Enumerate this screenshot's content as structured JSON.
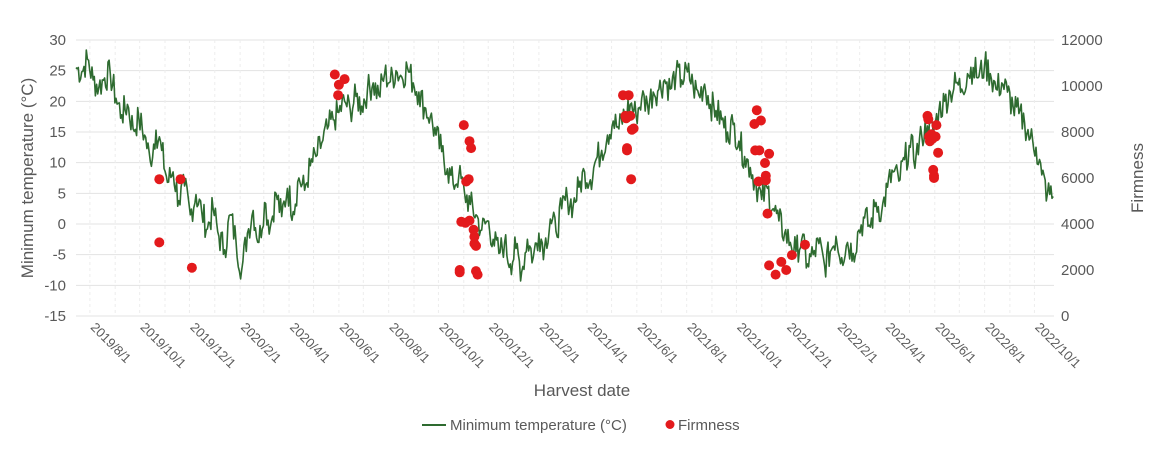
{
  "chart_data": {
    "type": "line+scatter",
    "xlabel": "Harvest date",
    "ylabel_left": "Minimum temperature (°C)",
    "ylabel_right": "Firmness",
    "x_range": [
      "2019-07-15",
      "2022-10-25"
    ],
    "ylim_left": [
      -15,
      30
    ],
    "ylim_right": [
      0,
      12000
    ],
    "yticks_left": [
      "-15",
      "-10",
      "-5",
      "0",
      "5",
      "10",
      "15",
      "20",
      "25",
      "30"
    ],
    "yticks_right": [
      "0",
      "2000",
      "4000",
      "6000",
      "8000",
      "10000",
      "12000"
    ],
    "x_tick_labels": [
      "2019/8/1",
      "2019/10/1",
      "2019/12/1",
      "2020/2/1",
      "2020/4/1",
      "2020/6/1",
      "2020/8/1",
      "2020/10/1",
      "2020/12/1",
      "2021/2/1",
      "2021/4/1",
      "2021/6/1",
      "2021/8/1",
      "2021/10/1",
      "2021/12/1",
      "2022/2/1",
      "2022/4/1",
      "2022/6/1",
      "2022/8/1",
      "2022/10/1"
    ],
    "grid": true,
    "legend_position": "bottom",
    "series": [
      {
        "name": "Minimum temperature (°C)",
        "type": "line",
        "axis": "left",
        "color": "#2e6b30",
        "points": [
          [
            "2019-07-15",
            25.5
          ],
          [
            "2019-07-22",
            24.8
          ],
          [
            "2019-07-29",
            26.9
          ],
          [
            "2019-08-05",
            23.5
          ],
          [
            "2019-08-12",
            22.3
          ],
          [
            "2019-08-19",
            23.8
          ],
          [
            "2019-08-26",
            24.5
          ],
          [
            "2019-09-02",
            20.5
          ],
          [
            "2019-09-09",
            17.8
          ],
          [
            "2019-09-16",
            19.5
          ],
          [
            "2019-09-23",
            15.5
          ],
          [
            "2019-09-30",
            17.2
          ],
          [
            "2019-10-07",
            14.5
          ],
          [
            "2019-10-14",
            10.2
          ],
          [
            "2019-10-21",
            15.3
          ],
          [
            "2019-10-28",
            12.0
          ],
          [
            "2019-11-04",
            6.8
          ],
          [
            "2019-11-11",
            8.5
          ],
          [
            "2019-11-18",
            3.8
          ],
          [
            "2019-11-25",
            6.2
          ],
          [
            "2019-12-02",
            1.5
          ],
          [
            "2019-12-09",
            4.8
          ],
          [
            "2019-12-16",
            2.0
          ],
          [
            "2019-12-23",
            -0.8
          ],
          [
            "2019-12-30",
            2.5
          ],
          [
            "2020-01-06",
            -2.0
          ],
          [
            "2020-01-13",
            -4.2
          ],
          [
            "2020-01-20",
            1.5
          ],
          [
            "2020-01-27",
            -2.8
          ],
          [
            "2020-02-03",
            -7.5
          ],
          [
            "2020-02-10",
            -1.5
          ],
          [
            "2020-02-17",
            2.2
          ],
          [
            "2020-02-24",
            -3.0
          ],
          [
            "2020-03-02",
            3.5
          ],
          [
            "2020-03-09",
            -0.5
          ],
          [
            "2020-03-16",
            5.0
          ],
          [
            "2020-03-23",
            1.2
          ],
          [
            "2020-03-30",
            5.8
          ],
          [
            "2020-04-06",
            2.0
          ],
          [
            "2020-04-13",
            7.5
          ],
          [
            "2020-04-20",
            5.5
          ],
          [
            "2020-04-27",
            9.5
          ],
          [
            "2020-05-04",
            11.0
          ],
          [
            "2020-05-11",
            13.2
          ],
          [
            "2020-05-18",
            15.5
          ],
          [
            "2020-05-25",
            17.0
          ],
          [
            "2020-06-01",
            18.2
          ],
          [
            "2020-06-08",
            20.0
          ],
          [
            "2020-06-15",
            18.5
          ],
          [
            "2020-06-22",
            20.8
          ],
          [
            "2020-06-29",
            19.2
          ],
          [
            "2020-07-06",
            21.8
          ],
          [
            "2020-07-13",
            23.0
          ],
          [
            "2020-07-20",
            21.0
          ],
          [
            "2020-07-27",
            24.5
          ],
          [
            "2020-08-03",
            23.2
          ],
          [
            "2020-08-10",
            25.0
          ],
          [
            "2020-08-17",
            24.0
          ],
          [
            "2020-08-24",
            25.5
          ],
          [
            "2020-08-31",
            23.0
          ],
          [
            "2020-09-07",
            21.5
          ],
          [
            "2020-09-14",
            19.0
          ],
          [
            "2020-09-21",
            17.5
          ],
          [
            "2020-09-28",
            14.5
          ],
          [
            "2020-10-05",
            11.8
          ],
          [
            "2020-10-12",
            9.0
          ],
          [
            "2020-10-19",
            6.5
          ],
          [
            "2020-10-26",
            8.0
          ],
          [
            "2020-11-02",
            5.0
          ],
          [
            "2020-11-09",
            3.2
          ],
          [
            "2020-11-16",
            1.5
          ],
          [
            "2020-11-23",
            -1.0
          ],
          [
            "2020-11-30",
            0.5
          ],
          [
            "2020-12-07",
            -2.5
          ],
          [
            "2020-12-14",
            -4.8
          ],
          [
            "2020-12-21",
            -3.0
          ],
          [
            "2020-12-28",
            -6.5
          ],
          [
            "2021-01-04",
            -4.0
          ],
          [
            "2021-01-11",
            -7.8
          ],
          [
            "2021-01-18",
            -2.5
          ],
          [
            "2021-01-25",
            -5.5
          ],
          [
            "2021-02-01",
            -1.5
          ],
          [
            "2021-02-08",
            -3.8
          ],
          [
            "2021-02-15",
            0.8
          ],
          [
            "2021-02-22",
            -1.2
          ],
          [
            "2021-03-01",
            2.5
          ],
          [
            "2021-03-08",
            4.2
          ],
          [
            "2021-03-15",
            3.0
          ],
          [
            "2021-03-22",
            6.0
          ],
          [
            "2021-03-29",
            8.5
          ],
          [
            "2021-04-05",
            7.2
          ],
          [
            "2021-04-12",
            10.5
          ],
          [
            "2021-04-19",
            12.0
          ],
          [
            "2021-04-26",
            14.5
          ],
          [
            "2021-05-03",
            16.8
          ],
          [
            "2021-05-10",
            15.5
          ],
          [
            "2021-05-17",
            18.0
          ],
          [
            "2021-05-24",
            19.5
          ],
          [
            "2021-05-31",
            17.8
          ],
          [
            "2021-06-07",
            20.5
          ],
          [
            "2021-06-14",
            19.5
          ],
          [
            "2021-06-21",
            21.5
          ],
          [
            "2021-06-28",
            22.0
          ],
          [
            "2021-07-05",
            23.5
          ],
          [
            "2021-07-12",
            22.0
          ],
          [
            "2021-07-19",
            24.5
          ],
          [
            "2021-07-26",
            23.5
          ],
          [
            "2021-08-02",
            24.8
          ],
          [
            "2021-08-09",
            22.5
          ],
          [
            "2021-08-16",
            21.0
          ],
          [
            "2021-08-23",
            22.8
          ],
          [
            "2021-08-30",
            19.5
          ],
          [
            "2021-09-06",
            18.5
          ],
          [
            "2021-09-13",
            17.0
          ],
          [
            "2021-09-20",
            15.0
          ],
          [
            "2021-09-27",
            16.2
          ],
          [
            "2021-10-04",
            13.5
          ],
          [
            "2021-10-11",
            11.0
          ],
          [
            "2021-10-18",
            9.2
          ],
          [
            "2021-10-25",
            6.5
          ],
          [
            "2021-11-01",
            4.0
          ],
          [
            "2021-11-08",
            5.8
          ],
          [
            "2021-11-15",
            2.5
          ],
          [
            "2021-11-22",
            0.5
          ],
          [
            "2021-11-29",
            -1.5
          ],
          [
            "2021-12-06",
            -3.0
          ],
          [
            "2021-12-13",
            -4.5
          ],
          [
            "2021-12-20",
            -2.5
          ],
          [
            "2021-12-27",
            -6.5
          ],
          [
            "2022-01-03",
            -5.0
          ],
          [
            "2022-01-10",
            -3.2
          ],
          [
            "2022-01-17",
            -6.8
          ],
          [
            "2022-01-24",
            -4.5
          ],
          [
            "2022-01-31",
            -2.0
          ],
          [
            "2022-02-07",
            -5.5
          ],
          [
            "2022-02-14",
            -3.0
          ],
          [
            "2022-02-21",
            -4.8
          ],
          [
            "2022-02-28",
            -1.0
          ],
          [
            "2022-03-07",
            1.0
          ],
          [
            "2022-03-14",
            -0.5
          ],
          [
            "2022-03-21",
            3.5
          ],
          [
            "2022-03-28",
            2.0
          ],
          [
            "2022-04-04",
            6.0
          ],
          [
            "2022-04-11",
            8.5
          ],
          [
            "2022-04-18",
            7.0
          ],
          [
            "2022-04-25",
            10.5
          ],
          [
            "2022-05-02",
            12.5
          ],
          [
            "2022-05-09",
            11.0
          ],
          [
            "2022-05-16",
            14.5
          ],
          [
            "2022-05-23",
            16.0
          ],
          [
            "2022-05-30",
            15.0
          ],
          [
            "2022-06-06",
            18.5
          ],
          [
            "2022-06-13",
            20.0
          ],
          [
            "2022-06-20",
            21.5
          ],
          [
            "2022-06-27",
            23.0
          ],
          [
            "2022-07-04",
            22.0
          ],
          [
            "2022-07-11",
            24.5
          ],
          [
            "2022-07-18",
            25.5
          ],
          [
            "2022-07-25",
            24.0
          ],
          [
            "2022-08-01",
            26.0
          ],
          [
            "2022-08-08",
            24.5
          ],
          [
            "2022-08-15",
            22.0
          ],
          [
            "2022-08-22",
            23.0
          ],
          [
            "2022-08-29",
            21.5
          ],
          [
            "2022-09-05",
            19.0
          ],
          [
            "2022-09-12",
            18.0
          ],
          [
            "2022-09-19",
            16.5
          ],
          [
            "2022-09-26",
            14.0
          ],
          [
            "2022-10-03",
            12.5
          ],
          [
            "2022-10-10",
            8.0
          ],
          [
            "2022-10-17",
            5.0
          ],
          [
            "2022-10-24",
            4.5
          ]
        ]
      },
      {
        "name": "Firmness",
        "type": "scatter",
        "axis": "right",
        "color": "#e31a1c",
        "points": [
          [
            "2019-10-25",
            5950
          ],
          [
            "2019-10-25",
            3200
          ],
          [
            "2019-11-20",
            5950
          ],
          [
            "2019-12-04",
            2100
          ],
          [
            "2020-05-27",
            10500
          ],
          [
            "2020-06-01",
            10050
          ],
          [
            "2020-05-31",
            9600
          ],
          [
            "2020-06-08",
            10300
          ],
          [
            "2020-10-27",
            2000
          ],
          [
            "2020-10-27",
            1900
          ],
          [
            "2020-10-29",
            4100
          ],
          [
            "2020-11-01",
            8300
          ],
          [
            "2020-11-03",
            4050
          ],
          [
            "2020-11-04",
            5850
          ],
          [
            "2020-11-07",
            5950
          ],
          [
            "2020-11-08",
            4150
          ],
          [
            "2020-11-08",
            7600
          ],
          [
            "2020-11-10",
            7300
          ],
          [
            "2020-11-13",
            3750
          ],
          [
            "2020-11-14",
            3450
          ],
          [
            "2020-11-14",
            3150
          ],
          [
            "2020-11-16",
            3050
          ],
          [
            "2020-11-16",
            1950
          ],
          [
            "2020-11-18",
            1800
          ],
          [
            "2021-05-15",
            9600
          ],
          [
            "2021-05-18",
            8700
          ],
          [
            "2021-05-19",
            8600
          ],
          [
            "2021-05-20",
            7300
          ],
          [
            "2021-05-20",
            7200
          ],
          [
            "2021-05-22",
            9600
          ],
          [
            "2021-05-24",
            8700
          ],
          [
            "2021-05-25",
            5950
          ],
          [
            "2021-05-26",
            8100
          ],
          [
            "2021-05-28",
            8150
          ],
          [
            "2021-10-23",
            8350
          ],
          [
            "2021-10-24",
            7200
          ],
          [
            "2021-10-26",
            8950
          ],
          [
            "2021-10-28",
            5850
          ],
          [
            "2021-10-29",
            7200
          ],
          [
            "2021-10-31",
            8500
          ],
          [
            "2021-11-05",
            6650
          ],
          [
            "2021-11-06",
            6100
          ],
          [
            "2021-11-06",
            5900
          ],
          [
            "2021-11-08",
            4450
          ],
          [
            "2021-11-10",
            7050
          ],
          [
            "2021-11-10",
            2200
          ],
          [
            "2021-11-18",
            1800
          ],
          [
            "2021-11-25",
            2350
          ],
          [
            "2021-12-01",
            2000
          ],
          [
            "2021-12-08",
            2650
          ],
          [
            "2021-12-24",
            3100
          ],
          [
            "2022-05-23",
            8700
          ],
          [
            "2022-05-24",
            8550
          ],
          [
            "2022-05-25",
            7800
          ],
          [
            "2022-05-26",
            7600
          ],
          [
            "2022-05-27",
            7800
          ],
          [
            "2022-05-28",
            7900
          ],
          [
            "2022-05-29",
            7700
          ],
          [
            "2022-05-30",
            6350
          ],
          [
            "2022-05-31",
            6100
          ],
          [
            "2022-05-31",
            6000
          ],
          [
            "2022-06-02",
            7800
          ],
          [
            "2022-06-03",
            8300
          ],
          [
            "2022-06-05",
            7100
          ]
        ]
      }
    ]
  }
}
